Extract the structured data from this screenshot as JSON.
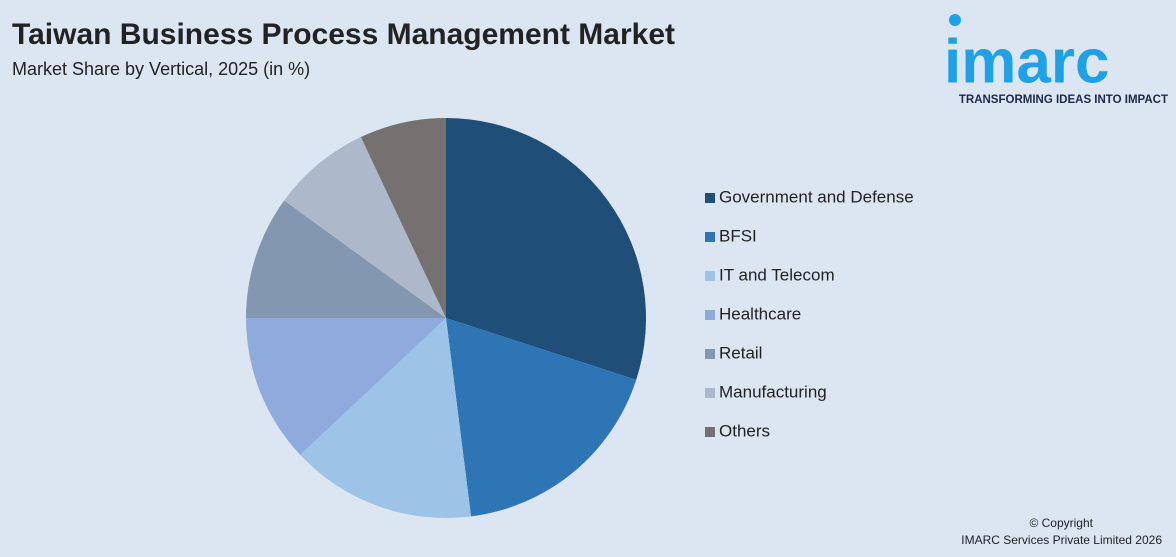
{
  "chart_data": {
    "type": "pie",
    "title": "Taiwan Business Process Management Market",
    "subtitle": "Market Share by Vertical, 2025 (in %)",
    "categories": [
      "Government and Defense",
      "BFSI",
      "IT and Telecom",
      "Healthcare",
      "Retail",
      "Manufacturing",
      "Others"
    ],
    "values": [
      30,
      18,
      15,
      12,
      10,
      8,
      7
    ],
    "colors": [
      "#1f4e79",
      "#2e75b6",
      "#9dc3e6",
      "#8faadc",
      "#8497b0",
      "#adb9ca",
      "#767171"
    ],
    "legend": "right"
  },
  "logo": {
    "name": "imarc",
    "tagline": "TRANSFORMING IDEAS INTO IMPACT"
  },
  "footer": {
    "copyright": "© Copyright",
    "owner": "IMARC Services Private Limited 2026"
  }
}
